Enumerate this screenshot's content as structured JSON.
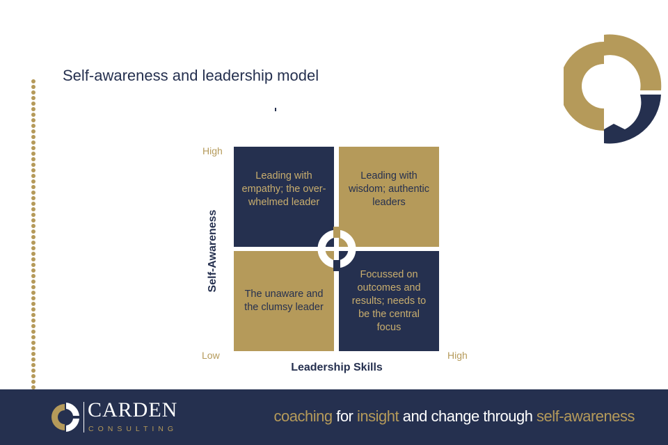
{
  "slide": {
    "title": "Self-awareness and leadership model"
  },
  "colors": {
    "navy": "#25304f",
    "gold": "#b59a5a",
    "white": "#ffffff"
  },
  "matrix": {
    "y_axis_title": "Self-Awareness",
    "x_axis_title": "Leadership Skills",
    "y_high_label": "High",
    "low_label": "Low",
    "x_high_label": "High",
    "quadrants": {
      "top_left": "Leading with empathy; the over-whelmed leader",
      "top_right": "Leading with wisdom; authentic leaders",
      "bottom_left": "The unaware and the clumsy leader",
      "bottom_right": "Focussed on outcomes and results; needs to be the central focus"
    },
    "center_icon": "ring-logo-icon"
  },
  "footer": {
    "brand_name": "CARDEN",
    "brand_sub": "CONSULTING",
    "tagline": {
      "w1": "coaching",
      "w2": " for ",
      "w3": "insight",
      "w4": " and change through ",
      "w5": "self-awareness"
    }
  }
}
